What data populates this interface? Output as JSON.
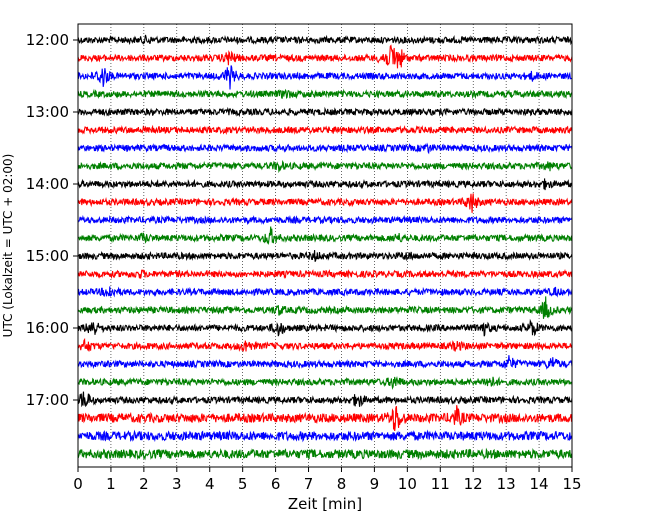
{
  "chart_data": {
    "type": "line",
    "title": "",
    "xlabel": "Zeit  [min]",
    "ylabel": "UTC (Lokalzeit = UTC + 02:00)",
    "xlim": [
      0,
      15
    ],
    "x_ticks": [
      "0",
      "1",
      "2",
      "3",
      "4",
      "5",
      "6",
      "7",
      "8",
      "9",
      "10",
      "11",
      "12",
      "13",
      "14",
      "15"
    ],
    "y_ticks": [
      "12:00",
      "13:00",
      "14:00",
      "15:00",
      "16:00",
      "17:00"
    ],
    "grid": "vertical-dotted",
    "trace_interval_min": 15,
    "trace_colors": [
      "#000000",
      "#ff0000",
      "#0000ff",
      "#008000"
    ],
    "traces": [
      {
        "start": "12:00",
        "color": "#000000",
        "events": [
          {
            "t": 2.1,
            "a": 0.25
          }
        ]
      },
      {
        "start": "12:15",
        "color": "#ff0000",
        "events": [
          {
            "t": 4.6,
            "a": 0.6
          },
          {
            "t": 9.3,
            "a": 0.5
          },
          {
            "t": 9.55,
            "a": 1.0
          },
          {
            "t": 9.75,
            "a": 0.8
          }
        ]
      },
      {
        "start": "12:30",
        "color": "#0000ff",
        "events": [
          {
            "t": 0.75,
            "a": 1.0
          },
          {
            "t": 4.6,
            "a": 1.0
          },
          {
            "t": 13.8,
            "a": 0.25
          }
        ]
      },
      {
        "start": "12:45",
        "color": "#008000",
        "events": [
          {
            "t": 6.3,
            "a": 0.3
          }
        ]
      },
      {
        "start": "13:00",
        "color": "#000000",
        "events": []
      },
      {
        "start": "13:15",
        "color": "#ff0000",
        "events": [
          {
            "t": 7.9,
            "a": 0.2
          }
        ]
      },
      {
        "start": "13:30",
        "color": "#0000ff",
        "events": [
          {
            "t": 10.6,
            "a": 0.25
          }
        ]
      },
      {
        "start": "13:45",
        "color": "#008000",
        "events": [
          {
            "t": 6.1,
            "a": 0.3
          },
          {
            "t": 14.3,
            "a": 0.25
          }
        ]
      },
      {
        "start": "14:00",
        "color": "#000000",
        "events": [
          {
            "t": 14.2,
            "a": 0.3
          }
        ]
      },
      {
        "start": "14:15",
        "color": "#ff0000",
        "events": [
          {
            "t": 11.95,
            "a": 0.9
          }
        ]
      },
      {
        "start": "14:30",
        "color": "#0000ff",
        "events": []
      },
      {
        "start": "14:45",
        "color": "#008000",
        "events": [
          {
            "t": 2.0,
            "a": 0.3
          },
          {
            "t": 5.85,
            "a": 0.7
          },
          {
            "t": 9.7,
            "a": 0.3
          }
        ]
      },
      {
        "start": "15:00",
        "color": "#000000",
        "events": [
          {
            "t": 7.2,
            "a": 0.3
          },
          {
            "t": 10.0,
            "a": 0.25
          }
        ]
      },
      {
        "start": "15:15",
        "color": "#ff0000",
        "events": [
          {
            "t": 1.9,
            "a": 0.2
          }
        ]
      },
      {
        "start": "15:30",
        "color": "#0000ff",
        "events": [
          {
            "t": 0.95,
            "a": 0.5
          },
          {
            "t": 14.5,
            "a": 0.2
          }
        ]
      },
      {
        "start": "15:45",
        "color": "#008000",
        "events": [
          {
            "t": 6.1,
            "a": 0.3
          },
          {
            "t": 14.2,
            "a": 0.9
          }
        ]
      },
      {
        "start": "16:00",
        "color": "#000000",
        "events": [
          {
            "t": 0.45,
            "a": 0.8
          },
          {
            "t": 6.1,
            "a": 0.6
          },
          {
            "t": 12.3,
            "a": 0.6
          },
          {
            "t": 13.8,
            "a": 0.7
          }
        ]
      },
      {
        "start": "16:15",
        "color": "#ff0000",
        "events": [
          {
            "t": 0.25,
            "a": 0.5
          },
          {
            "t": 5.1,
            "a": 0.5
          },
          {
            "t": 11.5,
            "a": 0.3
          }
        ]
      },
      {
        "start": "16:30",
        "color": "#0000ff",
        "events": [
          {
            "t": 13.1,
            "a": 0.6
          },
          {
            "t": 14.4,
            "a": 0.5
          }
        ]
      },
      {
        "start": "16:45",
        "color": "#008000",
        "events": [
          {
            "t": 9.6,
            "a": 0.5
          },
          {
            "t": 12.5,
            "a": 0.5
          }
        ]
      },
      {
        "start": "17:00",
        "color": "#000000",
        "events": [
          {
            "t": 0.2,
            "a": 0.8
          },
          {
            "t": 8.5,
            "a": 0.6
          }
        ]
      },
      {
        "start": "17:15",
        "color": "#ff0000",
        "events": [
          {
            "t": 9.65,
            "a": 0.9
          },
          {
            "t": 11.5,
            "a": 0.5
          }
        ]
      },
      {
        "start": "17:30",
        "color": "#0000ff",
        "events": []
      },
      {
        "start": "17:45",
        "color": "#008000",
        "events": []
      }
    ]
  }
}
